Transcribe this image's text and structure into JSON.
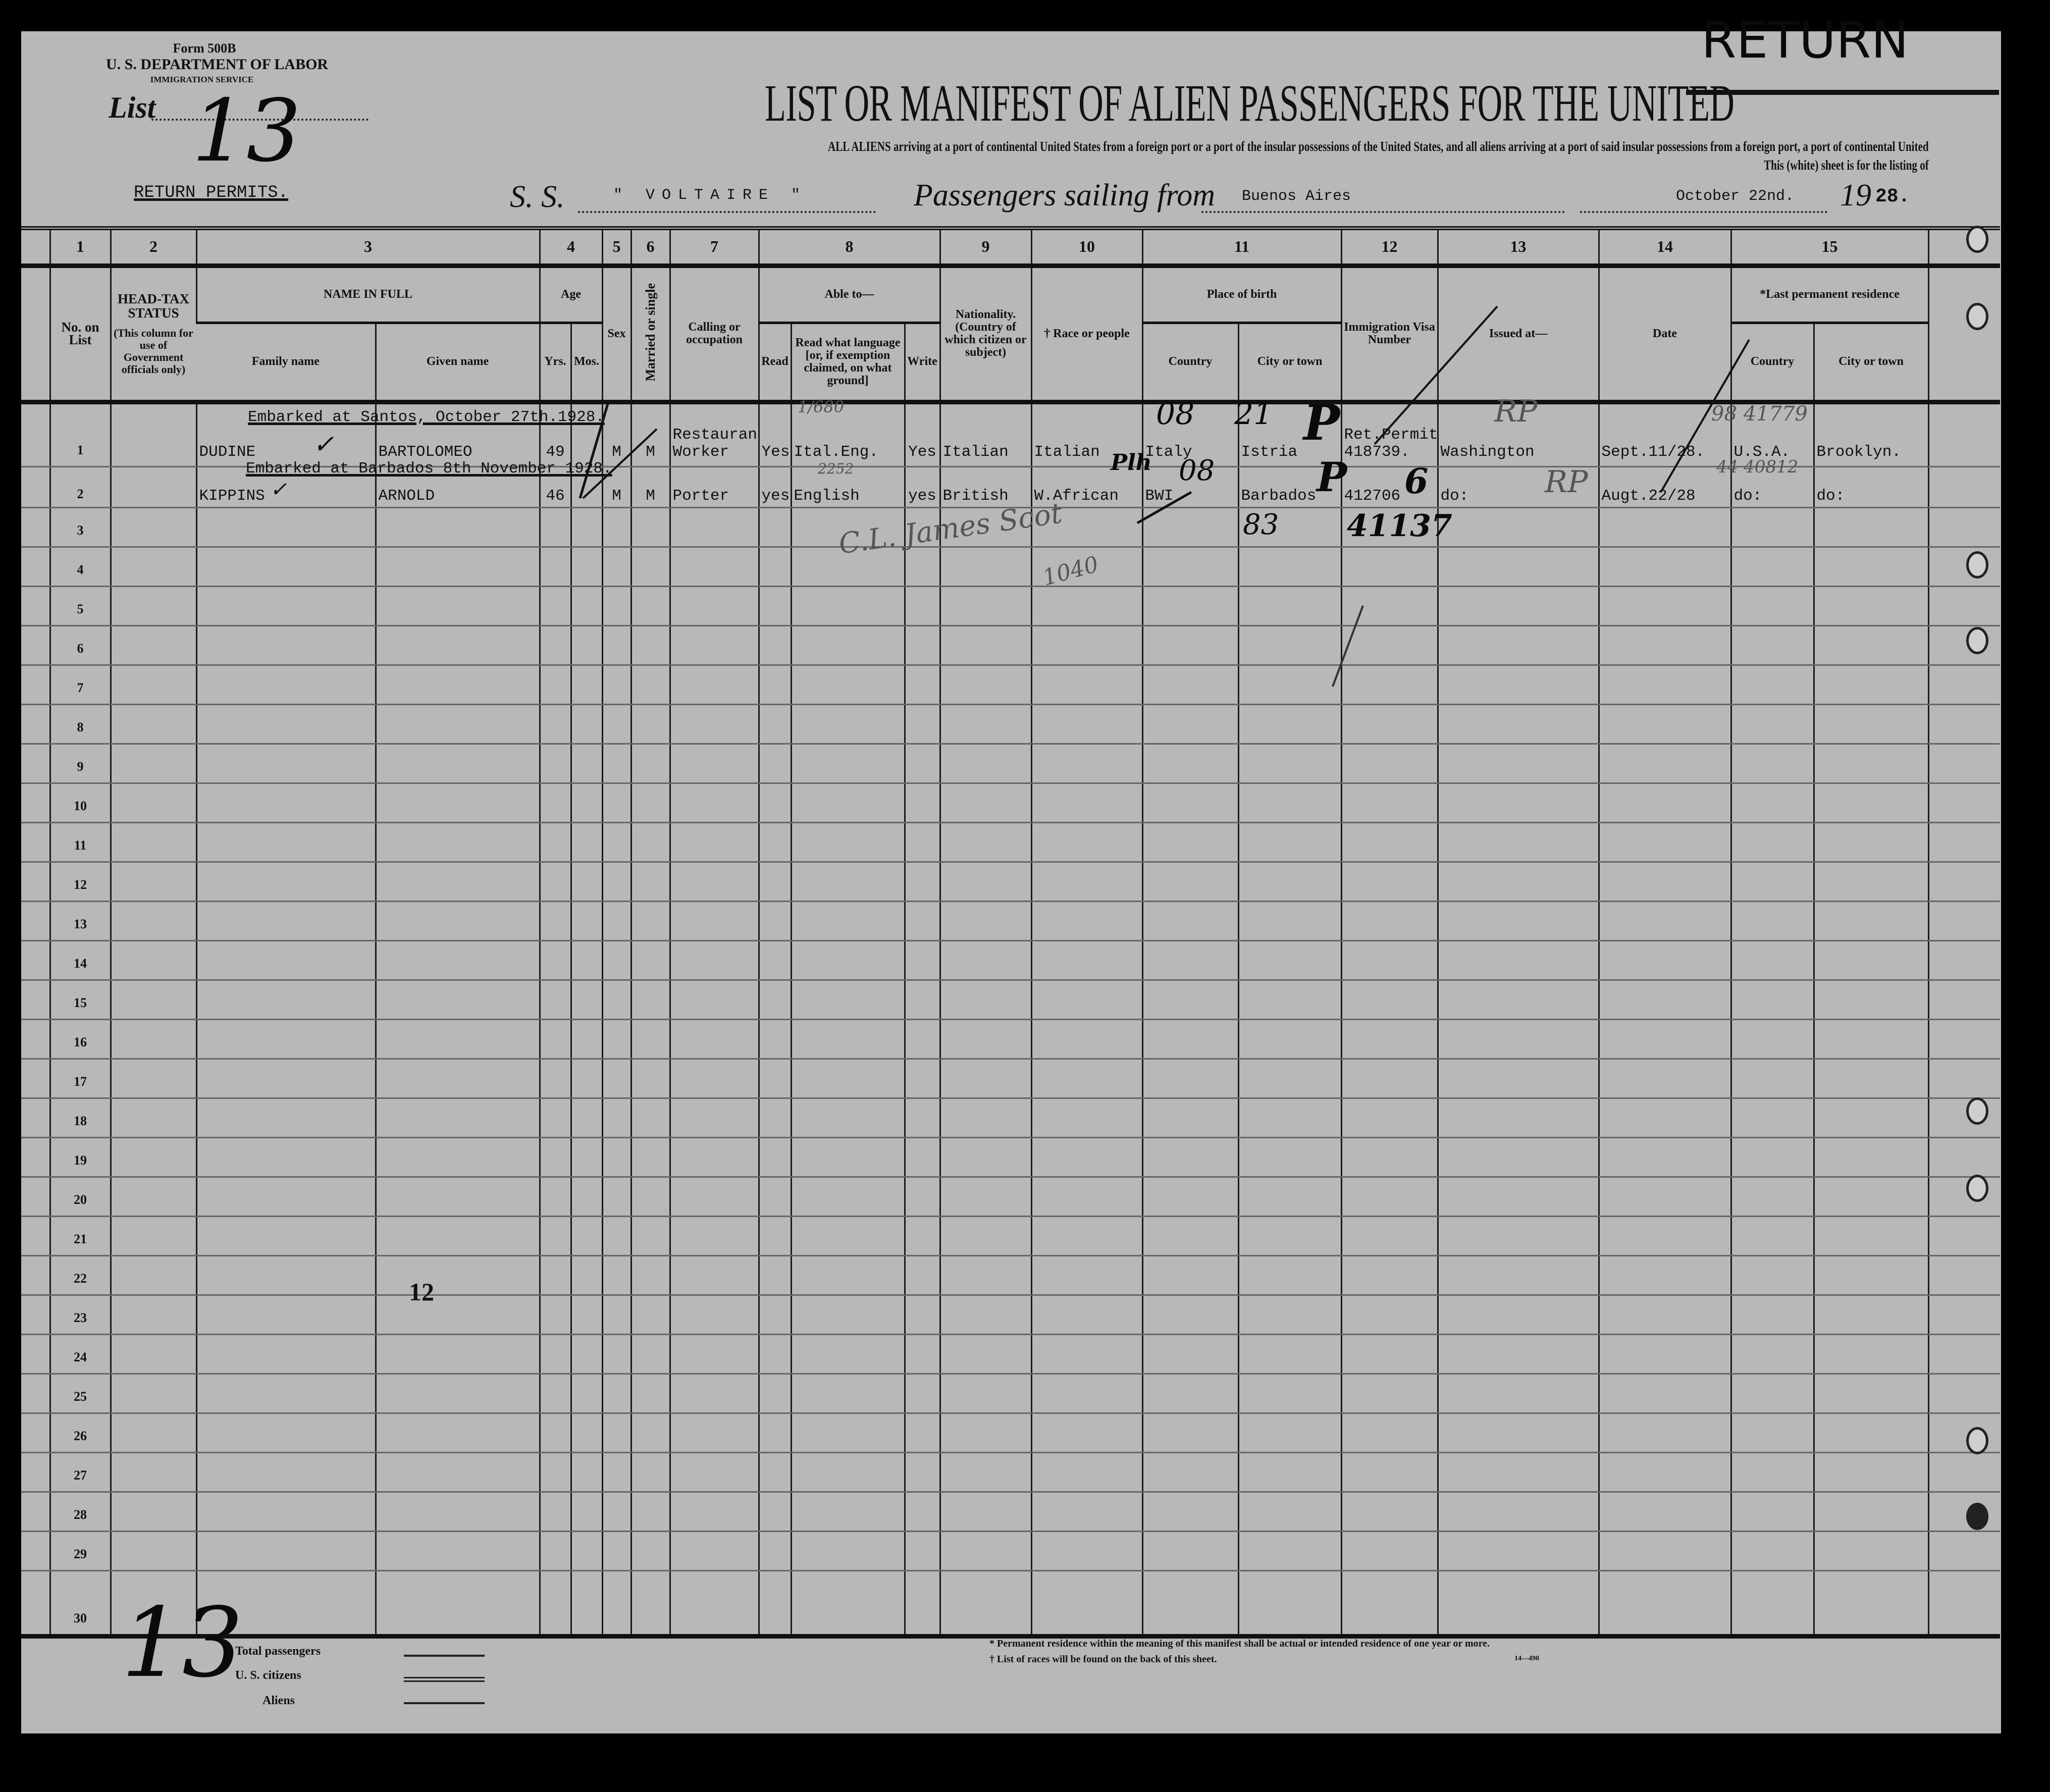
{
  "form": {
    "form_number": "Form 500B",
    "department": "U. S. DEPARTMENT OF LABOR",
    "service": "IMMIGRATION SERVICE",
    "list_label": "List",
    "list_number": "13"
  },
  "title": "LIST OR MANIFEST OF ALIEN PASSENGERS FOR THE UNITED",
  "stamp_return": "RETURN",
  "instructions": "ALL ALIENS arriving at a port of continental United States from a foreign port or a port of the insular possessions of the United States, and all aliens arriving at a port of said insular possessions from a foreign port, a port of continental United",
  "instructions_2": "This (white) sheet is for the listing of",
  "category": "RETURN PERMITS.",
  "voyage": {
    "ss_label": "S. S.",
    "ship_name": "\" VOLTAIRE \"",
    "sailing_label": "Passengers sailing from",
    "port": "Buenos Aires",
    "date": "October 22nd.",
    "year_prefix": "19",
    "year_suffix": "28."
  },
  "columns": {
    "numbers": [
      "1",
      "2",
      "3",
      "4",
      "5",
      "6",
      "7",
      "8",
      "9",
      "10",
      "11",
      "12",
      "13",
      "14",
      "15"
    ],
    "no_on_list": "No. on List",
    "head_tax": "HEAD-TAX STATUS",
    "head_tax_note": "(This column for use of Government officials only)",
    "name_in_full": "NAME IN FULL",
    "family_name": "Family name",
    "given_name": "Given name",
    "age": "Age",
    "yrs": "Yrs.",
    "mos": "Mos.",
    "sex": "Sex",
    "married": "Married or single",
    "calling": "Calling or occupation",
    "able_to": "Able to—",
    "read": "Read",
    "read_language": "Read what language [or, if exemption claimed, on what ground]",
    "write": "Write",
    "nationality": "Nationality. (Country of which citizen or subject)",
    "race": "† Race or people",
    "place_of_birth": "Place of birth",
    "country": "Country",
    "city": "City or town",
    "visa": "Immigration Visa Number",
    "issued_at": "Issued at—",
    "date": "Date",
    "last_residence": "*Last permanent residence",
    "res_country": "Country",
    "res_city": "City or town"
  },
  "embarked_notes": [
    "Embarked at Santos, October 27th.1928.",
    "Embarked at Barbados 8th November 1928."
  ],
  "table": {
    "rows": [
      {
        "no": "1",
        "family": "DUDINE",
        "given": "BARTOLOMEO",
        "yrs": "49",
        "sex": "M",
        "married": "M",
        "occupation": "Restaurant\nWorker",
        "read": "Yes",
        "language": "Ital.Eng.",
        "write": "Yes",
        "nationality": "Italian",
        "race": "Italian",
        "birth_country": "Italy",
        "birth_city": "Istria",
        "visa": "Ret.Permit\n418739.",
        "issued_at": "Washington",
        "date": "Sept.11/28.",
        "res_country": "U.S.A.",
        "res_city": "Brooklyn."
      },
      {
        "no": "2",
        "family": "KIPPINS",
        "given": "ARNOLD",
        "yrs": "46",
        "sex": "M",
        "married": "M",
        "occupation": "Porter",
        "read": "yes",
        "language": "English",
        "write": "yes",
        "nationality": "British",
        "race": "W.African",
        "birth_country": "BWI",
        "birth_city": "Barbados",
        "visa": "412706",
        "issued_at": "do:",
        "date": "Augt.22/28",
        "res_country": "do:",
        "res_city": "do:"
      },
      {
        "no": "3"
      },
      {
        "no": "4"
      },
      {
        "no": "5"
      },
      {
        "no": "6"
      },
      {
        "no": "7"
      },
      {
        "no": "8"
      },
      {
        "no": "9"
      },
      {
        "no": "10"
      },
      {
        "no": "11"
      },
      {
        "no": "12"
      },
      {
        "no": "13"
      },
      {
        "no": "14"
      },
      {
        "no": "15"
      },
      {
        "no": "16"
      },
      {
        "no": "17"
      },
      {
        "no": "18"
      },
      {
        "no": "19"
      },
      {
        "no": "20"
      },
      {
        "no": "21"
      },
      {
        "no": "22"
      },
      {
        "no": "23"
      },
      {
        "no": "24"
      },
      {
        "no": "25"
      },
      {
        "no": "26"
      },
      {
        "no": "27"
      },
      {
        "no": "28"
      },
      {
        "no": "29"
      },
      {
        "no": "30"
      }
    ]
  },
  "annotations": {
    "row1_birth_country_hw": "08",
    "row1_birth_city_hw": "21",
    "row1_p": "P",
    "row1_visa_hw": "41137",
    "row1_rp": "RP",
    "row2_race_hw": "Plh",
    "row2_birth_country_hw": "08",
    "row2_birth_city_hw": "83",
    "row2_p": "P",
    "row2_visa_hw": "6",
    "row2_rp": "RP",
    "row1_res_hw": "98 41779",
    "row2_res_hw": "44 40812",
    "pencil_1": "1/680",
    "pencil_2": "2252",
    "signature": "C.L. James Scot",
    "pencil_3": "1040",
    "stamp_12": "12"
  },
  "footer": {
    "list_number": "13",
    "total_passengers": "Total passengers",
    "us_citizens": "U. S. citizens",
    "aliens": "Aliens",
    "note_residence": "* Permanent residence within the meaning of this manifest shall be actual or intended residence of one year or more.",
    "note_races": "† List of races will be found on the back of this sheet.",
    "form_code": "14—490"
  }
}
